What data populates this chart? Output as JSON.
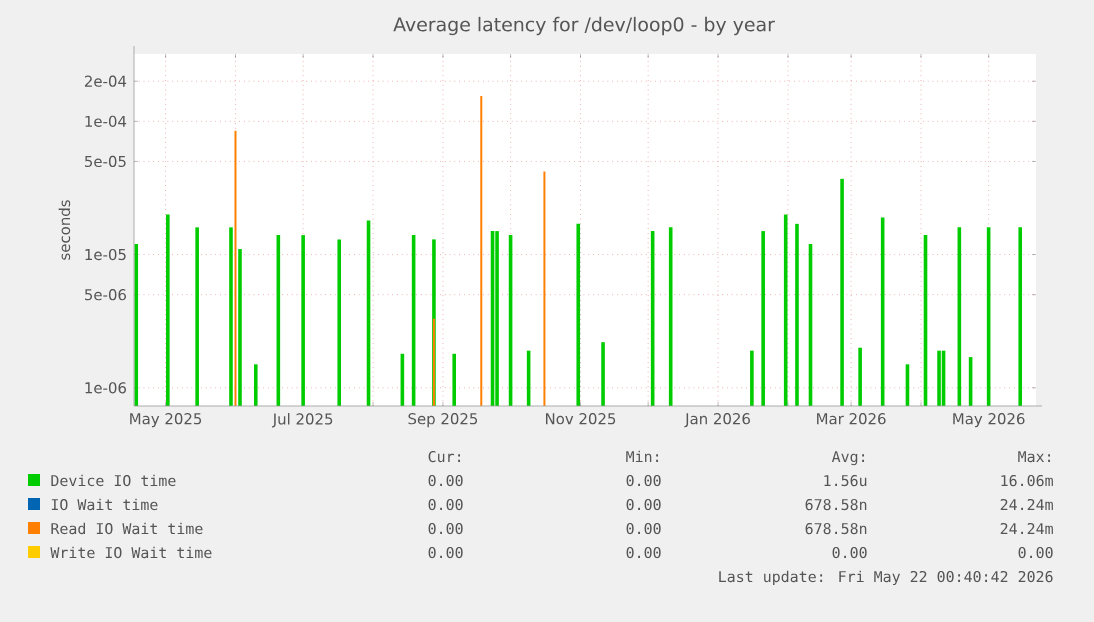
{
  "chart_data": {
    "type": "bar",
    "title": "Average latency for /dev/loop0 - by year",
    "ylabel": "seconds",
    "log": true,
    "grid": true,
    "legend": "bottom",
    "xlim": [
      "2025-04-17",
      "2026-05-22"
    ],
    "xticks": [
      {
        "value": "2025-05-01",
        "label": "May 2025"
      },
      {
        "value": "2025-06-01",
        "label": null
      },
      {
        "value": "2025-07-01",
        "label": "Jul 2025"
      },
      {
        "value": "2025-08-01",
        "label": null
      },
      {
        "value": "2025-09-01",
        "label": "Sep 2025"
      },
      {
        "value": "2025-10-01",
        "label": null
      },
      {
        "value": "2025-11-01",
        "label": "Nov 2025"
      },
      {
        "value": "2025-12-01",
        "label": null
      },
      {
        "value": "2026-01-01",
        "label": "Jan 2026"
      },
      {
        "value": "2026-02-01",
        "label": null
      },
      {
        "value": "2026-03-01",
        "label": "Mar 2026"
      },
      {
        "value": "2026-04-01",
        "label": null
      },
      {
        "value": "2026-05-01",
        "label": "May 2026"
      }
    ],
    "ylim": [
      7.3e-07,
      0.00032
    ],
    "yticks": [
      {
        "value": 1e-06,
        "label": "1e-06"
      },
      {
        "value": 5e-06,
        "label": "5e-06"
      },
      {
        "value": 1e-05,
        "label": "1e-05"
      },
      {
        "value": 5e-05,
        "label": "5e-05"
      },
      {
        "value": 0.0001,
        "label": "1e-04"
      },
      {
        "value": 0.0002,
        "label": "2e-04"
      }
    ],
    "series": [
      {
        "name": "Device IO time",
        "color": "#00cc00",
        "x": [
          "2025-04-18",
          "2025-05-02",
          "2025-05-15",
          "2025-05-30",
          "2025-06-03",
          "2025-06-10",
          "2025-06-20",
          "2025-07-01",
          "2025-07-17",
          "2025-07-30",
          "2025-08-14",
          "2025-08-19",
          "2025-08-28",
          "2025-09-06",
          "2025-09-23",
          "2025-09-25",
          "2025-10-01",
          "2025-10-09",
          "2025-10-31",
          "2025-11-11",
          "2025-12-03",
          "2025-12-11",
          "2026-01-16",
          "2026-01-21",
          "2026-01-31",
          "2026-02-05",
          "2026-02-11",
          "2026-02-25",
          "2026-03-05",
          "2026-03-15",
          "2026-03-26",
          "2026-04-03",
          "2026-04-09",
          "2026-04-11",
          "2026-04-18",
          "2026-04-23",
          "2026-05-01",
          "2026-05-15"
        ],
        "values": [
          1.2e-05,
          2e-05,
          1.6e-05,
          1.6e-05,
          1.1e-05,
          1.5e-06,
          1.4e-05,
          1.4e-05,
          1.3e-05,
          1.8e-05,
          1.8e-06,
          1.4e-05,
          1.3e-05,
          1.8e-06,
          1.5e-05,
          1.5e-05,
          1.4e-05,
          1.9e-06,
          1.7e-05,
          2.2e-06,
          1.5e-05,
          1.6e-05,
          1.9e-06,
          1.5e-05,
          2e-05,
          1.7e-05,
          1.2e-05,
          3.7e-05,
          2e-06,
          1.9e-05,
          1.5e-06,
          1.4e-05,
          1.9e-06,
          1.9e-06,
          1.6e-05,
          1.7e-06,
          1.6e-05,
          1.6e-05
        ]
      },
      {
        "name": "IO Wait time",
        "color": "#0066b3"
      },
      {
        "name": "Read IO Wait time",
        "color": "#ff8000",
        "x": [
          "2025-06-01",
          "2025-08-28",
          "2025-09-18",
          "2025-10-16"
        ],
        "values": [
          8.5e-05,
          3.3e-06,
          0.000155,
          4.2e-05
        ]
      },
      {
        "name": "Write IO Wait time",
        "color": "#ffcc00"
      }
    ],
    "annotations": [
      "Cur:",
      "Min:",
      "Avg:",
      "Max:",
      "0.00",
      "0.00",
      "1.56u",
      "16.06m",
      "0.00",
      "0.00",
      "678.58n",
      "24.24m",
      "0.00",
      "0.00",
      "678.58n",
      "24.24m",
      "0.00",
      "0.00",
      "0.00",
      "0.00",
      "Last update: Fri May 22 00:40:42 2026"
    ]
  }
}
